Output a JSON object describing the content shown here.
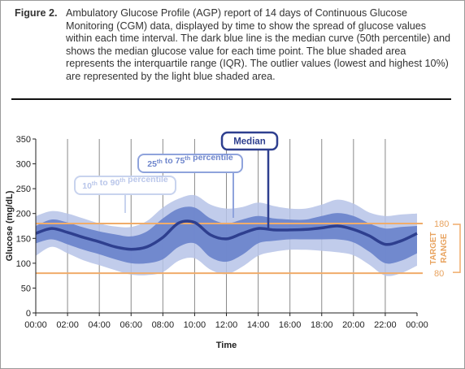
{
  "caption": {
    "label": "Figure 2.",
    "text": "Ambulatory Glucose Profile (AGP) report of 14 days of Continuous Glucose Monitoring (CGM) data, displayed by time to show the spread of glucose values within each time interval. The dark blue line is the median curve (50th percentile) and shows the median glucose value for each time point. The blue shaded area represents the interquartile range (IQR). The outlier values (lowest and highest 10%) are represented by the light blue shaded area."
  },
  "colors": {
    "median": "#2e3f8f",
    "iqr": "#6d85cc",
    "outer": "#b6c3e8",
    "target": "#f0ac6a",
    "target_text": "#e8a35f",
    "grid": "#8a8a8a"
  },
  "chart_data": {
    "type": "area",
    "xlabel": "Time",
    "ylabel": "Glucose (mg/dL)",
    "ylim": [
      0,
      350
    ],
    "xlim": [
      0,
      24
    ],
    "yticks": [
      0,
      50,
      100,
      150,
      200,
      250,
      300,
      350
    ],
    "xticks": [
      "00:00",
      "02:00",
      "04:00",
      "06:00",
      "08:00",
      "10:00",
      "12:00",
      "14:00",
      "16:00",
      "18:00",
      "20:00",
      "22:00",
      "00:00"
    ],
    "grid": "vertical",
    "target_range": {
      "low": 80,
      "high": 180,
      "label_low": "80",
      "label_high": "180",
      "label": "TARGET RANGE"
    },
    "annotations": [
      {
        "text": "Median"
      },
      {
        "text": "25th to 75th percentile"
      },
      {
        "text": "10th to 90th percentile"
      }
    ],
    "x": [
      0,
      1,
      2,
      3,
      4,
      5,
      6,
      7,
      8,
      9,
      10,
      11,
      12,
      13,
      14,
      15,
      16,
      17,
      18,
      19,
      20,
      21,
      22,
      23,
      24
    ],
    "series": [
      {
        "name": "Median",
        "values": [
          160,
          170,
          162,
          152,
          143,
          133,
          128,
          133,
          152,
          181,
          182,
          157,
          149,
          160,
          170,
          167,
          167,
          168,
          171,
          175,
          168,
          155,
          138,
          145,
          160
        ]
      },
      {
        "name": "25th percentile",
        "values": [
          140,
          148,
          138,
          127,
          118,
          108,
          100,
          100,
          108,
          133,
          140,
          112,
          103,
          117,
          140,
          145,
          148,
          148,
          148,
          148,
          142,
          123,
          100,
          105,
          120
        ]
      },
      {
        "name": "75th percentile",
        "values": [
          175,
          188,
          182,
          172,
          164,
          158,
          154,
          164,
          190,
          210,
          212,
          190,
          180,
          188,
          195,
          190,
          188,
          188,
          195,
          201,
          195,
          180,
          170,
          173,
          175
        ]
      },
      {
        "name": "10th percentile",
        "values": [
          115,
          133,
          120,
          106,
          96,
          86,
          77,
          76,
          82,
          105,
          110,
          87,
          78,
          93,
          115,
          123,
          127,
          127,
          125,
          122,
          116,
          97,
          75,
          80,
          95
        ]
      },
      {
        "name": "90th percentile",
        "values": [
          195,
          205,
          200,
          190,
          180,
          174,
          173,
          185,
          212,
          230,
          237,
          218,
          210,
          213,
          222,
          215,
          210,
          210,
          218,
          228,
          220,
          202,
          195,
          198,
          200
        ]
      }
    ]
  }
}
